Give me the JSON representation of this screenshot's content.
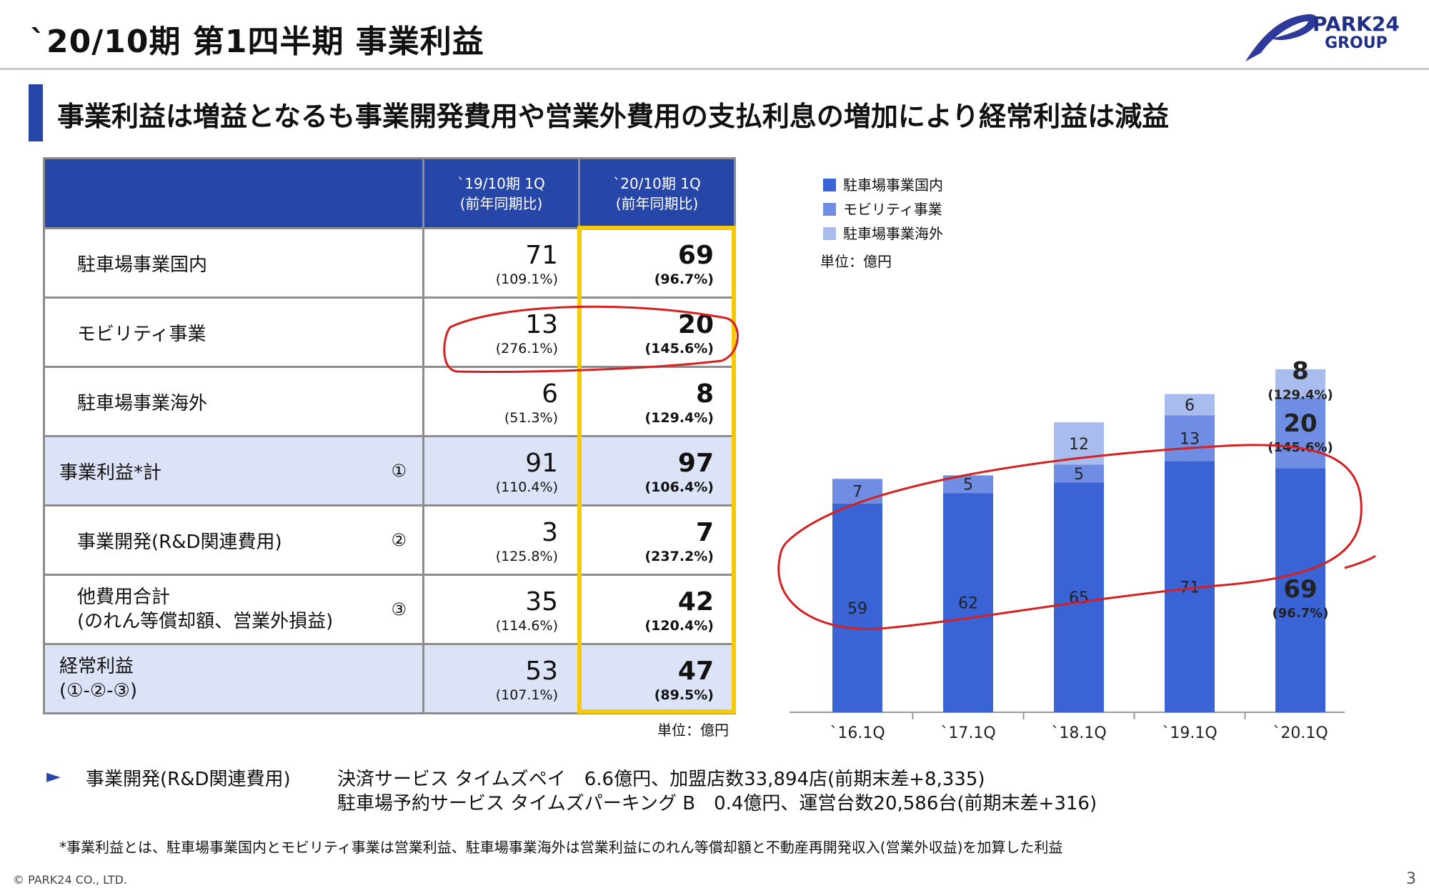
{
  "title": "`20/10期 第1四半期 事業利益",
  "logo": {
    "line1": "PARK24",
    "line2": "GROUP"
  },
  "subtitle": "事業利益は増益となるも事業開発費用や営業外費用の支払利息の増加により経常利益は減益",
  "table": {
    "col1_header": "`19/10期 1Q",
    "col1_sub": "(前年同期比)",
    "col2_header": "`20/10期 1Q",
    "col2_sub": "(前年同期比)",
    "rows": [
      {
        "label": "駐車場事業国内",
        "mark": "",
        "v1": "71",
        "p1": "(109.1%)",
        "v2": "69",
        "p2": "(96.7%)"
      },
      {
        "label": "モビリティ事業",
        "mark": "",
        "v1": "13",
        "p1": "(276.1%)",
        "v2": "20",
        "p2": "(145.6%)"
      },
      {
        "label": "駐車場事業海外",
        "mark": "",
        "v1": "6",
        "p1": "(51.3%)",
        "v2": "8",
        "p2": "(129.4%)"
      },
      {
        "label": "事業利益*計",
        "mark": "①",
        "v1": "91",
        "p1": "(110.4%)",
        "v2": "97",
        "p2": "(106.4%)"
      },
      {
        "label": "事業開発(R&D関連費用)",
        "mark": "②",
        "v1": "3",
        "p1": "(125.8%)",
        "v2": "7",
        "p2": "(237.2%)"
      },
      {
        "label": "他費用合計",
        "label2": "(のれん等償却額、営業外損益)",
        "mark": "③",
        "v1": "35",
        "p1": "(114.6%)",
        "v2": "42",
        "p2": "(120.4%)"
      },
      {
        "label": "経常利益",
        "label2": "(①-②-③)",
        "mark": "",
        "v1": "53",
        "p1": "(107.1%)",
        "v2": "47",
        "p2": "(89.5%)"
      }
    ],
    "unit": "単位：億円"
  },
  "chart_data": {
    "type": "bar",
    "stacked": true,
    "categories": [
      "`16.1Q",
      "`17.1Q",
      "`18.1Q",
      "`19.1Q",
      "`20.1Q"
    ],
    "series": [
      {
        "name": "駐車場事業国内",
        "values": [
          59,
          62,
          65,
          71,
          69
        ],
        "color": "#3a63d6"
      },
      {
        "name": "モビリティ事業",
        "values": [
          7,
          5,
          5,
          13,
          20
        ],
        "color": "#6f8ee3"
      },
      {
        "name": "駐車場事業海外",
        "values": [
          null,
          null,
          12,
          6,
          8
        ],
        "color": "#a9bcee"
      }
    ],
    "last_bar_percents": {
      "駐車場事業国内": "(96.7%)",
      "モビリティ事業": "(145.6%)",
      "駐車場事業海外": "(129.4%)"
    },
    "unit": "単位：億円",
    "legend": "top-left"
  },
  "bullet": {
    "label": "事業開発(R&D関連費用)",
    "line1": "決済サービス タイムズペイ　6.6億円、加盟店数33,894店(前期末差+8,335)",
    "line2": "駐車場予約サービス タイムズパーキング B　0.4億円、運営台数20,586台(前期末差+316)"
  },
  "footnote": "*事業利益とは、駐車場事業国内とモビリティ事業は営業利益、駐車場事業海外は営業利益にのれん等償却額と不動産再開発収入(営業外収益)を加算した利益",
  "copyright": "© PARK24 CO., LTD.",
  "page_number": "3"
}
